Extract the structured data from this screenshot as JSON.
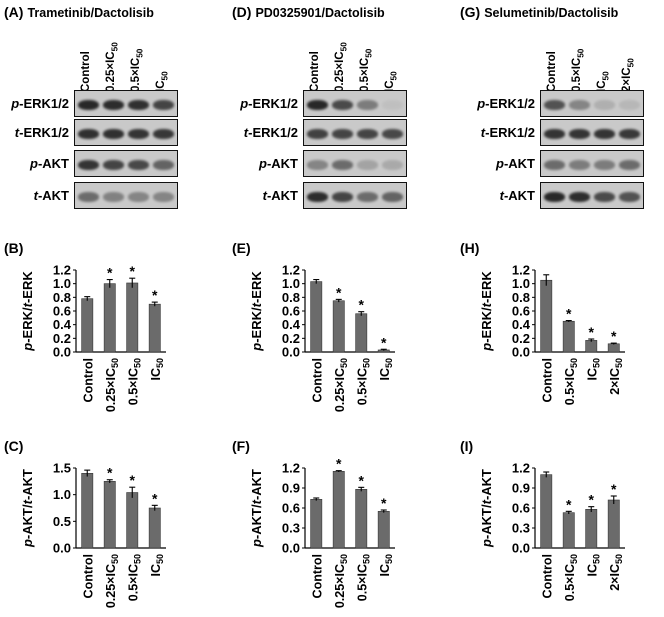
{
  "figure": {
    "panels": [
      {
        "blot": {
          "letter": "(A)",
          "title": "Trametinib/Dactolisib",
          "lanes": [
            "Control",
            "0.25×IC50",
            "0.5×IC50",
            "IC50"
          ],
          "rows": [
            {
              "pre": "p",
              "post": "-ERK1/2"
            },
            {
              "pre": "t",
              "post": "-ERK1/2"
            },
            {
              "pre": "p",
              "post": "-AKT"
            },
            {
              "pre": "t",
              "post": "-AKT"
            }
          ]
        },
        "erk_chart": {
          "letter": "(B)",
          "ylabel_pre1": "p",
          "ylabel_mid": "-ERK/",
          "ylabel_pre2": "t",
          "ylabel_post": "-ERK",
          "chart_data": {
            "type": "bar",
            "categories": [
              "Control",
              "0.25×IC50",
              "0.5×IC50",
              "IC50"
            ],
            "values": [
              0.78,
              1.0,
              1.01,
              0.7
            ],
            "errors": [
              0.03,
              0.06,
              0.07,
              0.03
            ],
            "significant": [
              false,
              true,
              true,
              true
            ],
            "yticks": [
              0.0,
              0.2,
              0.4,
              0.6,
              0.8,
              1.0,
              1.2
            ],
            "ylim": [
              0,
              1.2
            ]
          }
        },
        "akt_chart": {
          "letter": "(C)",
          "ylabel_pre1": "p",
          "ylabel_mid": "-AKT/",
          "ylabel_pre2": "t",
          "ylabel_post": "-AKT",
          "chart_data": {
            "type": "bar",
            "categories": [
              "Control",
              "0.25×IC50",
              "0.5×IC50",
              "IC50"
            ],
            "values": [
              1.4,
              1.25,
              1.04,
              0.75
            ],
            "errors": [
              0.06,
              0.03,
              0.1,
              0.05
            ],
            "significant": [
              false,
              true,
              true,
              true
            ],
            "yticks": [
              0.0,
              0.5,
              1.0,
              1.5
            ],
            "ylim": [
              0,
              1.5
            ]
          }
        }
      },
      {
        "blot": {
          "letter": "(D)",
          "title": "PD0325901/Dactolisib",
          "lanes": [
            "Control",
            "0.25×IC50",
            "0.5×IC50",
            "IC50"
          ],
          "rows": [
            {
              "pre": "p",
              "post": "-ERK1/2"
            },
            {
              "pre": "t",
              "post": "-ERK1/2"
            },
            {
              "pre": "p",
              "post": "-AKT"
            },
            {
              "pre": "t",
              "post": "-AKT"
            }
          ]
        },
        "erk_chart": {
          "letter": "(E)",
          "ylabel_pre1": "p",
          "ylabel_mid": "-ERK/",
          "ylabel_pre2": "t",
          "ylabel_post": "-ERK",
          "chart_data": {
            "type": "bar",
            "categories": [
              "Control",
              "0.25×IC50",
              "0.5×IC50",
              "IC50"
            ],
            "values": [
              1.03,
              0.75,
              0.56,
              0.03
            ],
            "errors": [
              0.03,
              0.02,
              0.03,
              0.01
            ],
            "significant": [
              false,
              true,
              true,
              true
            ],
            "yticks": [
              0.0,
              0.2,
              0.4,
              0.6,
              0.8,
              1.0,
              1.2
            ],
            "ylim": [
              0,
              1.2
            ]
          }
        },
        "akt_chart": {
          "letter": "(F)",
          "ylabel_pre1": "p",
          "ylabel_mid": "-AKT/",
          "ylabel_pre2": "t",
          "ylabel_post": "-AKT",
          "chart_data": {
            "type": "bar",
            "categories": [
              "Control",
              "0.25×IC50",
              "0.5×IC50",
              "IC50"
            ],
            "values": [
              0.73,
              1.15,
              0.88,
              0.55
            ],
            "errors": [
              0.02,
              0.01,
              0.03,
              0.02
            ],
            "significant": [
              false,
              true,
              true,
              true
            ],
            "yticks": [
              0.0,
              0.3,
              0.6,
              0.9,
              1.2
            ],
            "ylim": [
              0,
              1.2
            ]
          }
        }
      },
      {
        "blot": {
          "letter": "(G)",
          "title": "Selumetinib/Dactolisib",
          "lanes": [
            "Control",
            "0.5×IC50",
            "IC50",
            "2×IC50"
          ],
          "rows": [
            {
              "pre": "p",
              "post": "-ERK1/2"
            },
            {
              "pre": "t",
              "post": "-ERK1/2"
            },
            {
              "pre": "p",
              "post": "-AKT"
            },
            {
              "pre": "t",
              "post": "-AKT"
            }
          ]
        },
        "erk_chart": {
          "letter": "(H)",
          "ylabel_pre1": "p",
          "ylabel_mid": "-ERK/",
          "ylabel_pre2": "t",
          "ylabel_post": "-ERK",
          "chart_data": {
            "type": "bar",
            "categories": [
              "Control",
              "0.5×IC50",
              "IC50",
              "2×IC50"
            ],
            "values": [
              1.05,
              0.45,
              0.17,
              0.12
            ],
            "errors": [
              0.08,
              0.01,
              0.02,
              0.01
            ],
            "significant": [
              false,
              true,
              true,
              true
            ],
            "yticks": [
              0.0,
              0.2,
              0.4,
              0.6,
              0.8,
              1.0,
              1.2
            ],
            "ylim": [
              0,
              1.2
            ]
          }
        },
        "akt_chart": {
          "letter": "(I)",
          "ylabel_pre1": "p",
          "ylabel_mid": "-AKT/",
          "ylabel_pre2": "t",
          "ylabel_post": "-AKT",
          "chart_data": {
            "type": "bar",
            "categories": [
              "Control",
              "0.5×IC50",
              "IC50",
              "2×IC50"
            ],
            "values": [
              1.1,
              0.53,
              0.58,
              0.72
            ],
            "errors": [
              0.04,
              0.02,
              0.04,
              0.06
            ],
            "significant": [
              false,
              true,
              true,
              true
            ],
            "yticks": [
              0.0,
              0.3,
              0.6,
              0.9,
              1.2
            ],
            "ylim": [
              0,
              1.2
            ]
          }
        }
      }
    ],
    "blot_intensity": [
      [
        [
          0.95,
          0.92,
          0.9,
          0.78
        ],
        [
          0.9,
          0.9,
          0.88,
          0.86
        ],
        [
          0.88,
          0.78,
          0.76,
          0.6
        ],
        [
          0.55,
          0.42,
          0.4,
          0.4
        ]
      ],
      [
        [
          0.95,
          0.75,
          0.45,
          0.05
        ],
        [
          0.8,
          0.78,
          0.78,
          0.76
        ],
        [
          0.4,
          0.55,
          0.22,
          0.18
        ],
        [
          0.92,
          0.78,
          0.55,
          0.6
        ]
      ],
      [
        [
          0.7,
          0.4,
          0.15,
          0.1
        ],
        [
          0.88,
          0.88,
          0.88,
          0.85
        ],
        [
          0.55,
          0.45,
          0.45,
          0.55
        ],
        [
          0.95,
          0.92,
          0.75,
          0.7
        ]
      ]
    ],
    "style": {
      "bar_color": "#6b6b6b",
      "blot_bg": "#c9c9c9",
      "band_color": "#202020"
    }
  }
}
